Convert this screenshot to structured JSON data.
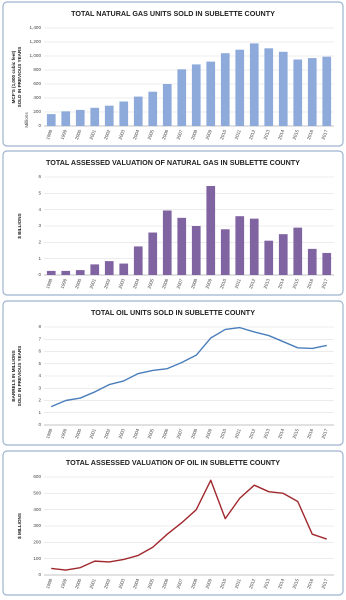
{
  "chart_data": [
    {
      "type": "bar",
      "title": "TOTAL NATURAL GAS UNITS SOLD IN SUBLETTE COUNTY",
      "ylabel": [
        "MCF'S (1,000 cubic feet)",
        "SOLD IN PREVIOUS YEARS"
      ],
      "yunit": "Millions",
      "categories": [
        "1998",
        "1999",
        "2000",
        "2001",
        "2002",
        "2003",
        "2004",
        "2005",
        "2006",
        "2007",
        "2008",
        "2009",
        "2010",
        "2011",
        "2012",
        "2013",
        "2014",
        "2015",
        "2016",
        "2017"
      ],
      "values": [
        170,
        210,
        230,
        260,
        290,
        350,
        420,
        490,
        600,
        810,
        880,
        920,
        1040,
        1090,
        1180,
        1110,
        1060,
        950,
        970,
        990
      ],
      "color": "#8eaadb",
      "ylim": [
        0,
        1400
      ],
      "yticks": [
        0,
        200,
        400,
        600,
        800,
        {
          "value": 1000,
          "label": "1,000"
        },
        {
          "value": 1200,
          "label": "1,200"
        },
        {
          "value": 1400,
          "label": "1,400"
        }
      ],
      "grid": true
    },
    {
      "type": "bar",
      "title": "TOTAL ASSESSED VALUATION OF NATURAL GAS IN SUBLETTE COUNTY",
      "ylabel": [
        "$ BILLIONS"
      ],
      "categories": [
        "1998",
        "1999",
        "2000",
        "2001",
        "2002",
        "2003",
        "2004",
        "2005",
        "2006",
        "2007",
        "2008",
        "2009",
        "2010",
        "2011",
        "2012",
        "2013",
        "2014",
        "2015",
        "2016",
        "2017"
      ],
      "values": [
        0.25,
        0.25,
        0.3,
        0.65,
        0.85,
        0.7,
        1.75,
        2.6,
        3.95,
        3.5,
        3.0,
        5.45,
        2.8,
        3.6,
        3.45,
        2.1,
        2.5,
        2.9,
        1.6,
        1.35
      ],
      "color": "#8064a2",
      "ylim": [
        0,
        6
      ],
      "yticks": [
        0,
        1,
        2,
        3,
        4,
        5,
        6
      ],
      "grid": true
    },
    {
      "type": "line",
      "title": "TOTAL OIL UNITS SOLD IN SUBLETTE COUNTY",
      "ylabel": [
        "BARRELS IN MILLIONS",
        "SOLD IN PREVIOUS YEARS"
      ],
      "categories": [
        "1998",
        "1999",
        "2000",
        "2001",
        "2002",
        "2003",
        "2004",
        "2005",
        "2006",
        "2007",
        "2008",
        "2009",
        "2010",
        "2011",
        "2012",
        "2013",
        "2014",
        "2015",
        "2016",
        "2017"
      ],
      "values": [
        1.5,
        2.0,
        2.2,
        2.7,
        3.3,
        3.6,
        4.2,
        4.45,
        4.6,
        5.1,
        5.7,
        7.1,
        7.8,
        7.95,
        7.6,
        7.3,
        6.8,
        6.3,
        6.25,
        6.5
      ],
      "color": "#4a7ebb",
      "ylim": [
        0,
        8
      ],
      "yticks": [
        0,
        1,
        2,
        3,
        4,
        5,
        6,
        7,
        8
      ],
      "grid": true
    },
    {
      "type": "line",
      "title": "TOTAL ASSESSED VALUATION OF OIL IN SUBLETTE COUNTY",
      "ylabel": [
        "$ MILLIONS"
      ],
      "categories": [
        "1998",
        "1999",
        "2000",
        "2001",
        "2002",
        "2003",
        "2004",
        "2005",
        "2006",
        "2007",
        "2008",
        "2009",
        "2010",
        "2011",
        "2012",
        "2013",
        "2014",
        "2015",
        "2016",
        "2017"
      ],
      "values": [
        40,
        30,
        45,
        85,
        80,
        95,
        120,
        170,
        250,
        320,
        400,
        580,
        345,
        470,
        550,
        510,
        500,
        450,
        250,
        220
      ],
      "color": "#a0282d",
      "ylim": [
        0,
        600
      ],
      "yticks": [
        0,
        100,
        200,
        300,
        400,
        500,
        600
      ],
      "grid": true
    }
  ]
}
